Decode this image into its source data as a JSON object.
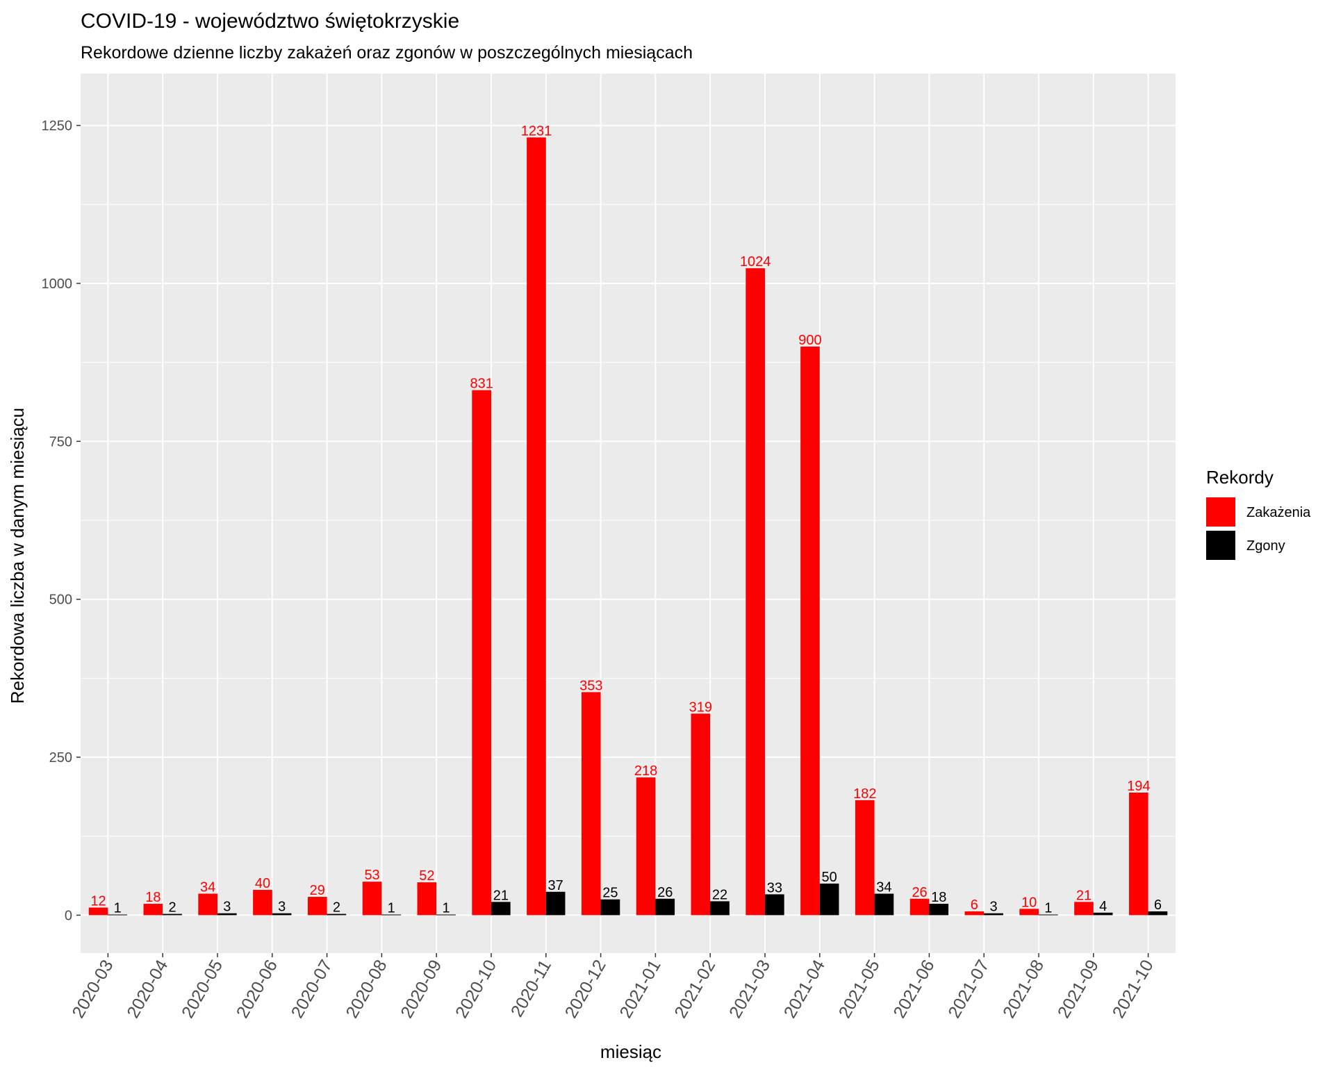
{
  "chart_data": {
    "type": "bar",
    "title": "COVID-19 - województwo świętokrzyskie",
    "subtitle": "Rekordowe dzienne liczby zakażeń oraz zgonów w poszczególnych miesiącach",
    "xlabel": "miesiąc",
    "ylabel": "Rekordowa liczba w danym miesiącu",
    "ylim": [
      -60,
      1332
    ],
    "yticks": [
      0,
      250,
      500,
      750,
      1000,
      1250
    ],
    "grid": true,
    "legend_title": "Rekordy",
    "legend_position": "right",
    "categories": [
      "2020-03",
      "2020-04",
      "2020-05",
      "2020-06",
      "2020-07",
      "2020-08",
      "2020-09",
      "2020-10",
      "2020-11",
      "2020-12",
      "2021-01",
      "2021-02",
      "2021-03",
      "2021-04",
      "2021-05",
      "2021-06",
      "2021-07",
      "2021-08",
      "2021-09",
      "2021-10"
    ],
    "series": [
      {
        "name": "Zakażenia",
        "color": "#ff0000",
        "values": [
          12,
          18,
          34,
          40,
          29,
          53,
          52,
          831,
          1231,
          353,
          218,
          319,
          1024,
          900,
          182,
          26,
          6,
          10,
          21,
          194
        ]
      },
      {
        "name": "Zgony",
        "color": "#000000",
        "values": [
          1,
          2,
          3,
          3,
          2,
          1,
          1,
          21,
          37,
          25,
          26,
          22,
          33,
          50,
          34,
          18,
          3,
          1,
          4,
          6
        ]
      }
    ]
  }
}
